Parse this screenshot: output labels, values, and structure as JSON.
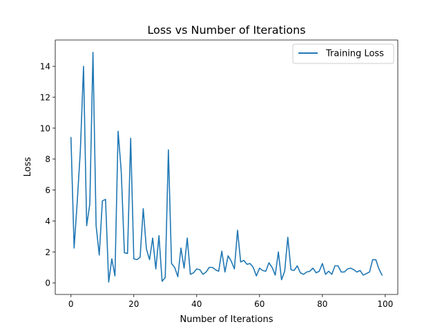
{
  "chart_data": {
    "type": "line",
    "title": "Loss vs Number of Iterations",
    "xlabel": "Number of Iterations",
    "ylabel": "Loss",
    "xlim": [
      -5,
      104
    ],
    "ylim": [
      -0.75,
      15.7
    ],
    "xticks": [
      0,
      20,
      40,
      60,
      80,
      100
    ],
    "yticks": [
      0,
      2,
      4,
      6,
      8,
      10,
      12,
      14
    ],
    "grid": false,
    "legend_position": "top-right",
    "series": [
      {
        "name": "Training Loss",
        "color": "#1f77b4",
        "x": [
          0,
          1,
          2,
          3,
          4,
          5,
          6,
          7,
          8,
          9,
          10,
          11,
          12,
          13,
          14,
          15,
          16,
          17,
          18,
          19,
          20,
          21,
          22,
          23,
          24,
          25,
          26,
          27,
          28,
          29,
          30,
          31,
          32,
          33,
          34,
          35,
          36,
          37,
          38,
          39,
          40,
          41,
          42,
          43,
          44,
          45,
          46,
          47,
          48,
          49,
          50,
          51,
          52,
          53,
          54,
          55,
          56,
          57,
          58,
          59,
          60,
          61,
          62,
          63,
          64,
          65,
          66,
          67,
          68,
          69,
          70,
          71,
          72,
          73,
          74,
          75,
          76,
          77,
          78,
          79,
          80,
          81,
          82,
          83,
          84,
          85,
          86,
          87,
          88,
          89,
          90,
          91,
          92,
          93,
          94,
          95,
          96,
          97,
          98,
          99
        ],
        "values": [
          9.4,
          2.25,
          5.25,
          8.6,
          14.0,
          3.7,
          5.1,
          14.9,
          3.7,
          1.8,
          5.3,
          5.4,
          0.05,
          1.55,
          0.45,
          9.8,
          7.2,
          1.95,
          1.9,
          9.35,
          1.55,
          1.5,
          1.65,
          4.8,
          2.2,
          1.5,
          2.9,
          0.9,
          3.05,
          0.1,
          0.35,
          8.6,
          1.25,
          1.0,
          0.4,
          2.25,
          0.95,
          2.9,
          0.55,
          0.65,
          0.9,
          0.85,
          0.55,
          0.7,
          1.0,
          1.0,
          0.85,
          0.75,
          2.05,
          0.7,
          1.75,
          1.4,
          0.9,
          3.4,
          1.35,
          1.45,
          1.2,
          1.25,
          1.0,
          0.45,
          0.95,
          0.8,
          0.75,
          1.3,
          1.0,
          0.5,
          2.0,
          0.2,
          0.75,
          2.95,
          0.85,
          0.8,
          1.1,
          0.65,
          0.55,
          0.7,
          0.75,
          0.95,
          0.65,
          0.75,
          1.25,
          0.55,
          0.75,
          0.55,
          1.1,
          1.1,
          0.7,
          0.7,
          0.9,
          0.95,
          0.85,
          0.7,
          0.8,
          0.5,
          0.6,
          0.7,
          1.5,
          1.5,
          0.9,
          0.5
        ]
      }
    ]
  }
}
